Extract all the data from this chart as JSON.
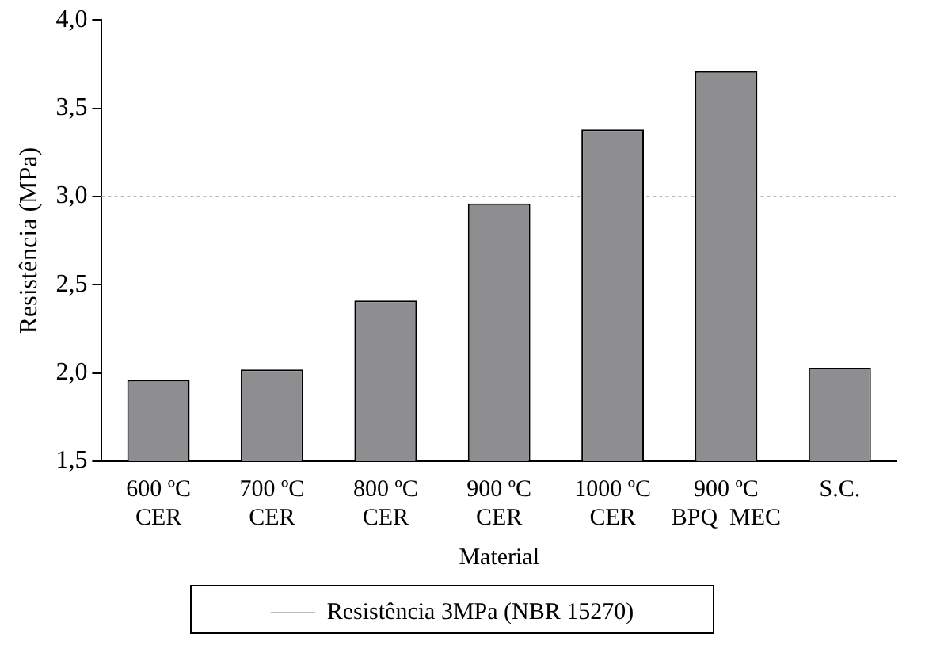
{
  "chart_data": {
    "type": "bar",
    "xlabel": "Material",
    "ylabel": "Resistência (MPa)",
    "categories": [
      "600 ºC\nCER",
      "700 ºC\nCER",
      "800 ºC\nCER",
      "900 ºC\nCER",
      "1000 ºC\nCER",
      "900 ºC\nBPQ  MEC",
      "S.C."
    ],
    "values": [
      1.96,
      2.02,
      2.41,
      2.96,
      3.38,
      3.71,
      2.03
    ],
    "color": "#8e8e90",
    "ylim": [
      1.5,
      4.0
    ],
    "yticks": [
      {
        "value": 1.5,
        "label": "1,5"
      },
      {
        "value": 2.0,
        "label": "2,0"
      },
      {
        "value": 2.5,
        "label": "2,5"
      },
      {
        "value": 3.0,
        "label": "3,0"
      },
      {
        "value": 3.5,
        "label": "3,5"
      },
      {
        "value": 4.0,
        "label": "4,0"
      }
    ],
    "grid": false,
    "legend": "bottom",
    "ref_lines": [
      {
        "axis": "y",
        "value": 3.0,
        "label": "Resistência 3MPa (NBR 15270)",
        "color": "#bbbbbb",
        "line_style": "dotted"
      }
    ]
  }
}
